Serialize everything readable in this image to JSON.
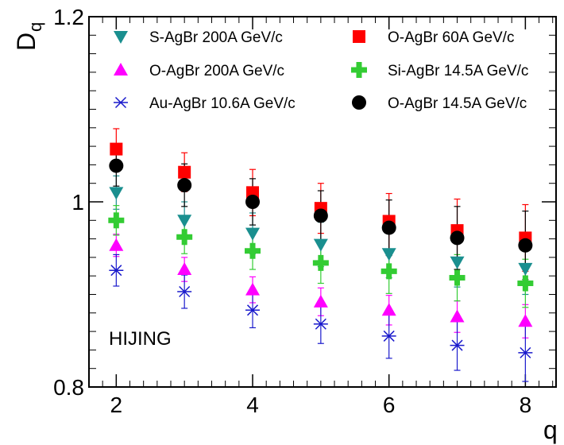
{
  "chart_data": {
    "type": "scatter",
    "title": "",
    "xlabel": "q",
    "ylabel": "D",
    "ylabel_subscript": "q",
    "xlim": [
      1.6,
      8.45
    ],
    "ylim": [
      0.8,
      1.2
    ],
    "xticks": [
      2,
      4,
      6,
      8
    ],
    "xtick_labels": [
      "2",
      "4",
      "6",
      "8"
    ],
    "yticks": [
      0.8,
      1,
      1.2
    ],
    "ytick_labels": [
      "0.8",
      "1",
      "1.2"
    ],
    "grid": false,
    "legend_position": "top",
    "annotation": "HIJING",
    "series": [
      {
        "name": "S-AgBr 200A GeV/c",
        "marker": "triangle-down",
        "color": "#1a8f8f",
        "x": [
          2,
          3,
          4,
          5,
          6,
          7,
          8
        ],
        "y": [
          1.01,
          0.98,
          0.966,
          0.954,
          0.944,
          0.935,
          0.928
        ],
        "err": [
          0.018,
          0.02,
          0.022,
          0.024,
          0.026,
          0.027,
          0.028
        ]
      },
      {
        "name": "O-AgBr 60A GeV/c",
        "marker": "square",
        "color": "#ff0000",
        "x": [
          2,
          3,
          4,
          5,
          6,
          7,
          8
        ],
        "y": [
          1.057,
          1.032,
          1.01,
          0.993,
          0.979,
          0.969,
          0.961
        ],
        "err": [
          0.022,
          0.021,
          0.025,
          0.027,
          0.03,
          0.034,
          0.036
        ]
      },
      {
        "name": "O-AgBr 200A GeV/c",
        "marker": "triangle-up",
        "color": "#ff00ff",
        "x": [
          2,
          3,
          4,
          5,
          6,
          7,
          8
        ],
        "y": [
          0.953,
          0.927,
          0.905,
          0.892,
          0.883,
          0.876,
          0.871
        ],
        "err": [
          0.012,
          0.013,
          0.014,
          0.015,
          0.016,
          0.017,
          0.018
        ]
      },
      {
        "name": "Si-AgBr 14.5A GeV/c",
        "marker": "cross",
        "color": "#33cc33",
        "x": [
          2,
          3,
          4,
          5,
          6,
          7,
          8
        ],
        "y": [
          0.98,
          0.962,
          0.947,
          0.934,
          0.925,
          0.918,
          0.912
        ],
        "err": [
          0.016,
          0.018,
          0.02,
          0.022,
          0.024,
          0.025,
          0.026
        ]
      },
      {
        "name": "Au-AgBr 10.6A GeV/c",
        "marker": "asterisk",
        "color": "#1a1acc",
        "x": [
          2,
          3,
          4,
          5,
          6,
          7,
          8
        ],
        "y": [
          0.926,
          0.903,
          0.883,
          0.868,
          0.855,
          0.845,
          0.837
        ],
        "err": [
          0.017,
          0.018,
          0.019,
          0.021,
          0.024,
          0.027,
          0.031
        ]
      },
      {
        "name": "O-AgBr 14.5A GeV/c",
        "marker": "circle",
        "color": "#000000",
        "x": [
          2,
          3,
          4,
          5,
          6,
          7,
          8
        ],
        "y": [
          1.039,
          1.018,
          1.0,
          0.985,
          0.972,
          0.961,
          0.953
        ],
        "err": [
          0.022,
          0.023,
          0.025,
          0.027,
          0.03,
          0.034,
          0.037
        ]
      }
    ]
  }
}
